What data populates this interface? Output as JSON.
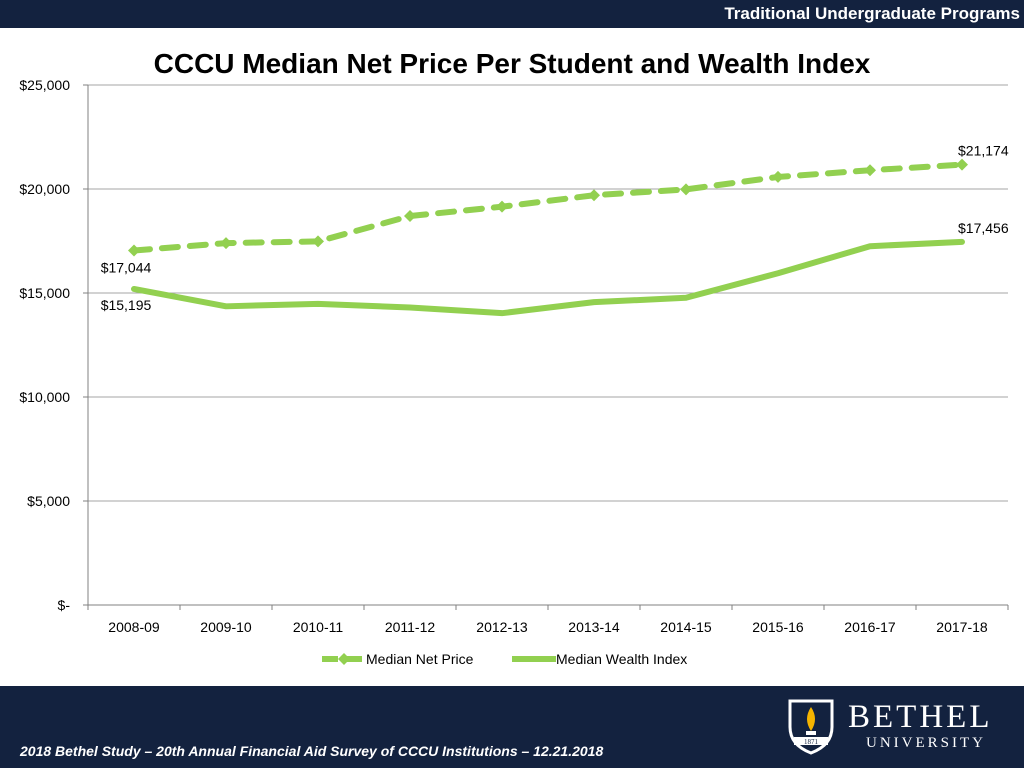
{
  "header": {
    "tag": "Traditional Undergraduate Programs"
  },
  "footer": {
    "citation": "2018 Bethel Study – 20th Annual Financial Aid Survey of CCCU Institutions – 12.21.2018",
    "logo_line1": "BETHEL",
    "logo_line2": "UNIVERSITY",
    "logo_year": "1871"
  },
  "colors": {
    "navy": "#13223f",
    "series": "#92d050",
    "gold": "#f5b400"
  },
  "chart_data": {
    "type": "line",
    "title": "CCCU Median Net Price Per Student and Wealth Index",
    "categories": [
      "2008-09",
      "2009-10",
      "2010-11",
      "2011-12",
      "2012-13",
      "2013-14",
      "2014-15",
      "2015-16",
      "2016-17",
      "2017-18"
    ],
    "ylim": [
      0,
      25000
    ],
    "yticks": [
      0,
      5000,
      10000,
      15000,
      20000,
      25000
    ],
    "ytick_labels": [
      "$-",
      "$5,000",
      "$10,000",
      "$15,000",
      "$20,000",
      "$25,000"
    ],
    "grid": true,
    "legend": "bottom",
    "series": [
      {
        "name": "Median Net Price",
        "style": "dashed-marker",
        "values": [
          17044,
          17400,
          17480,
          18700,
          19150,
          19700,
          19980,
          20580,
          20900,
          21174
        ]
      },
      {
        "name": "Median Wealth Index",
        "style": "solid",
        "values": [
          15195,
          14360,
          14480,
          14300,
          14030,
          14560,
          14770,
          15950,
          17250,
          17456
        ]
      }
    ],
    "annotations": [
      {
        "text": "$17,044",
        "series": 0,
        "index": 0
      },
      {
        "text": "$21,174",
        "series": 0,
        "index": 9
      },
      {
        "text": "$15,195",
        "series": 1,
        "index": 0
      },
      {
        "text": "$17,456",
        "series": 1,
        "index": 9
      }
    ]
  }
}
